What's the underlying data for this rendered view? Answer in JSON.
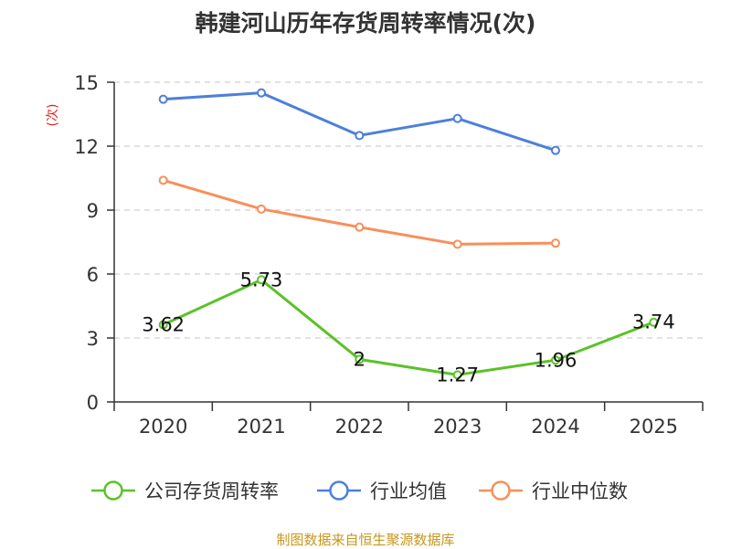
{
  "chart_data": {
    "type": "line",
    "title": "韩建河山历年存货周转率情况(次)",
    "ylabel": "(次)",
    "xlabel": "",
    "categories": [
      "2020",
      "2021",
      "2022",
      "2023",
      "2024",
      "2025"
    ],
    "ylim": [
      0,
      15
    ],
    "yticks": [
      0,
      3,
      6,
      9,
      12,
      15
    ],
    "grid": true,
    "legend_position": "bottom",
    "series": [
      {
        "name": "公司存货周转率",
        "color": "#5bc229",
        "values": [
          3.62,
          5.73,
          2,
          1.27,
          1.96,
          3.74
        ],
        "data_labels": [
          "3.62",
          "5.73",
          "2",
          "1.27",
          "1.96",
          "3.74"
        ]
      },
      {
        "name": "行业均值",
        "color": "#4d7fdb",
        "values": [
          14.2,
          14.5,
          12.5,
          13.3,
          11.8,
          null
        ]
      },
      {
        "name": "行业中位数",
        "color": "#f88f5a",
        "values": [
          10.4,
          9.05,
          8.2,
          7.4,
          7.45,
          null
        ]
      }
    ],
    "source": "制图数据来自恒生聚源数据库"
  }
}
